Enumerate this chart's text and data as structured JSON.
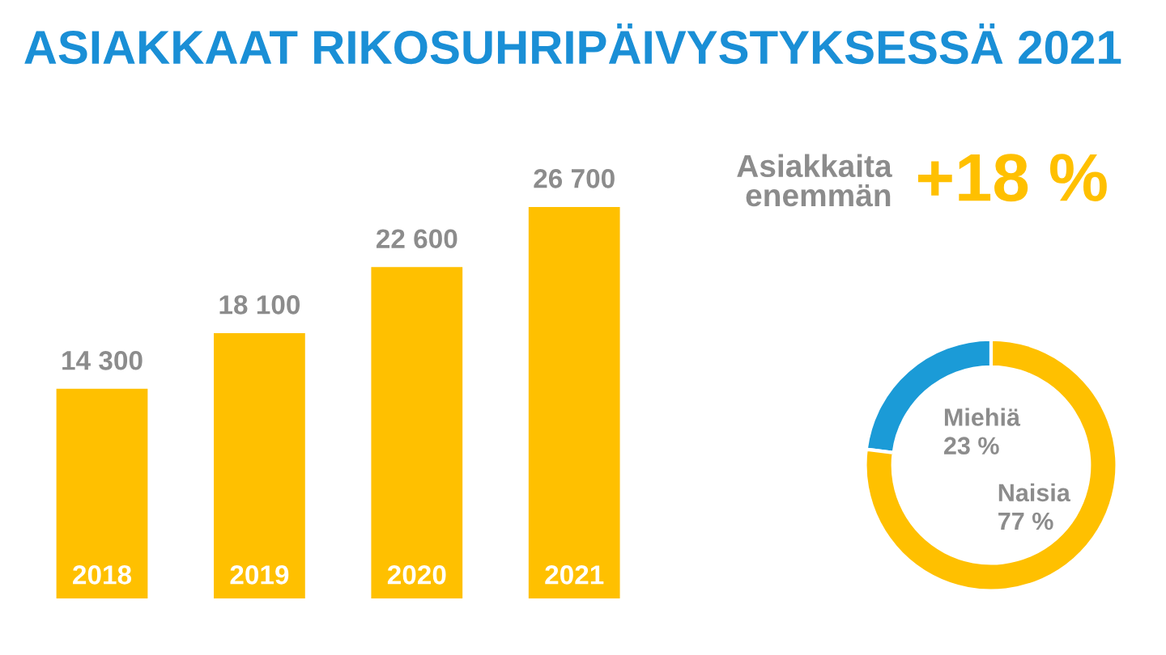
{
  "chart_data": [
    {
      "type": "bar",
      "title": "ASIAKKAAT RIKOSUHRIPÄIVYSTYKSESSÄ 2021",
      "categories": [
        "2018",
        "2019",
        "2020",
        "2021"
      ],
      "values": [
        14300,
        18100,
        22600,
        26700
      ],
      "value_labels": [
        "14 300",
        "18 100",
        "22 600",
        "26 700"
      ],
      "color": "#ffc000"
    },
    {
      "type": "donut",
      "categories": [
        "Miehiä",
        "Naisia"
      ],
      "values": [
        23,
        77
      ],
      "value_labels": [
        "23 %",
        "77 %"
      ],
      "colors": [
        "#1b9bd7",
        "#ffc000"
      ]
    },
    {
      "type": "other",
      "annotations": [
        "Asiakkaita enemmän",
        "+18 %"
      ]
    }
  ]
}
